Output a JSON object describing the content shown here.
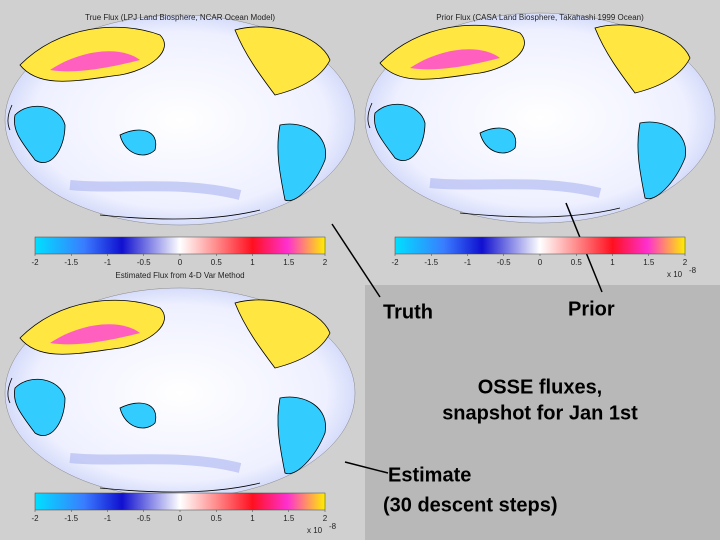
{
  "panels": [
    {
      "title": "True Flux (LPJ Land Biosphere, NCAR Ocean Model)",
      "ticks": [
        "-2",
        "-1.5",
        "-1",
        "-0.5",
        "0",
        "0.5",
        "1",
        "1.5",
        "2"
      ]
    },
    {
      "title": "Prior Flux (CASA Land Biosphere, Takahashi 1999 Ocean)",
      "ticks": [
        "-2",
        "-1.5",
        "-1",
        "-0.5",
        "0",
        "0.5",
        "1",
        "1.5",
        "2"
      ],
      "scale": {
        "base": "x 10",
        "exponent": "-8"
      }
    },
    {
      "title": "Estimated Flux from 4-D Var Method",
      "ticks": [
        "-2",
        "-1.5",
        "-1",
        "-0.5",
        "0",
        "0.5",
        "1",
        "1.5",
        "2"
      ],
      "scale": {
        "base": "x 10",
        "exponent": "-8"
      }
    }
  ],
  "annotations": {
    "truth": "Truth",
    "prior": "Prior",
    "osse": [
      "OSSE fluxes,",
      "snapshot for Jan 1st"
    ],
    "estimate": [
      "Estimate",
      "(30 descent steps)"
    ]
  }
}
